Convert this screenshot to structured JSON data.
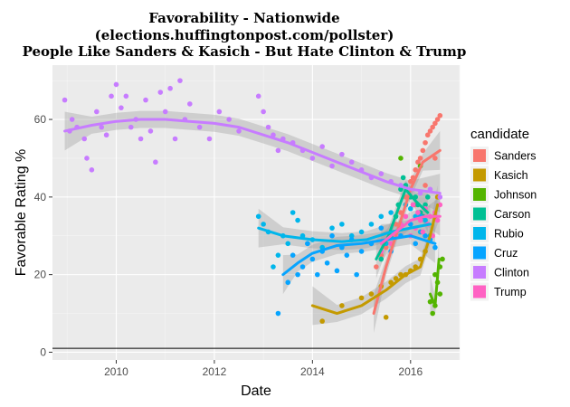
{
  "chart_data": {
    "type": "scatter",
    "title": [
      "Favorability - Nationwide",
      "(elections.huffingtonpost.com/pollster)",
      "People Like Sanders & Kasich - But Hate Clinton & Trump"
    ],
    "xlabel": "Date",
    "ylabel": "Favorable Rating %",
    "xlim": [
      2008.7,
      2017.0
    ],
    "ylim": [
      -2,
      74
    ],
    "x_ticks": [
      2010,
      2012,
      2014,
      2016
    ],
    "y_ticks": [
      0,
      20,
      40,
      60
    ],
    "reference_line_y": 1,
    "grid": true,
    "background": "#ebebeb",
    "smoothing": "loess with grey confidence band",
    "legend": {
      "title": "candidate",
      "placement": "right"
    },
    "series": [
      {
        "name": "Sanders",
        "color": "#f8766d",
        "points": [
          [
            2015.3,
            22
          ],
          [
            2015.4,
            25
          ],
          [
            2015.5,
            27
          ],
          [
            2015.6,
            30
          ],
          [
            2015.7,
            33
          ],
          [
            2015.8,
            36
          ],
          [
            2015.9,
            40
          ],
          [
            2016.0,
            44
          ],
          [
            2016.05,
            45
          ],
          [
            2016.1,
            47
          ],
          [
            2016.15,
            49
          ],
          [
            2016.2,
            50
          ],
          [
            2016.25,
            52
          ],
          [
            2016.3,
            54
          ],
          [
            2016.35,
            56
          ],
          [
            2016.4,
            57
          ],
          [
            2016.45,
            58
          ],
          [
            2016.5,
            59
          ],
          [
            2016.55,
            60
          ],
          [
            2016.6,
            61
          ],
          [
            2016.1,
            38
          ],
          [
            2016.3,
            43
          ],
          [
            2016.5,
            50
          ]
        ],
        "fit": [
          [
            2015.25,
            10
          ],
          [
            2015.5,
            22
          ],
          [
            2015.75,
            32
          ],
          [
            2016.0,
            42
          ],
          [
            2016.25,
            49
          ],
          [
            2016.6,
            52
          ]
        ]
      },
      {
        "name": "Kasich",
        "color": "#c49a00",
        "points": [
          [
            2014.2,
            8
          ],
          [
            2014.6,
            12
          ],
          [
            2015.0,
            14
          ],
          [
            2015.2,
            15
          ],
          [
            2015.4,
            17
          ],
          [
            2015.5,
            9
          ],
          [
            2015.6,
            18
          ],
          [
            2015.7,
            19
          ],
          [
            2015.8,
            20
          ],
          [
            2015.9,
            20
          ],
          [
            2016.0,
            21
          ],
          [
            2016.1,
            22
          ],
          [
            2016.2,
            24
          ],
          [
            2016.3,
            26
          ],
          [
            2016.4,
            30
          ],
          [
            2016.5,
            35
          ],
          [
            2016.55,
            40
          ]
        ],
        "fit": [
          [
            2014.0,
            12
          ],
          [
            2014.5,
            10
          ],
          [
            2015.0,
            12
          ],
          [
            2015.5,
            16
          ],
          [
            2015.9,
            20
          ],
          [
            2016.2,
            22
          ],
          [
            2016.4,
            30
          ],
          [
            2016.55,
            38
          ]
        ]
      },
      {
        "name": "Johnson",
        "color": "#53b400",
        "points": [
          [
            2015.8,
            50
          ],
          [
            2016.2,
            48
          ],
          [
            2016.4,
            13
          ],
          [
            2016.45,
            10
          ],
          [
            2016.5,
            12
          ],
          [
            2016.55,
            18
          ],
          [
            2016.6,
            22
          ],
          [
            2016.65,
            24
          ],
          [
            2016.5,
            20
          ],
          [
            2016.6,
            15
          ]
        ],
        "fit": [
          [
            2016.4,
            15
          ],
          [
            2016.5,
            12
          ],
          [
            2016.58,
            24
          ]
        ]
      },
      {
        "name": "Carson",
        "color": "#00c094",
        "points": [
          [
            2015.4,
            24
          ],
          [
            2015.6,
            30
          ],
          [
            2015.7,
            35
          ],
          [
            2015.75,
            38
          ],
          [
            2015.8,
            42
          ],
          [
            2015.85,
            45
          ],
          [
            2015.9,
            43
          ],
          [
            2016.0,
            40
          ],
          [
            2016.05,
            38
          ],
          [
            2016.1,
            40
          ],
          [
            2016.15,
            38
          ],
          [
            2016.2,
            36
          ],
          [
            2016.25,
            35
          ],
          [
            2016.3,
            38
          ],
          [
            2016.35,
            40
          ]
        ],
        "fit": [
          [
            2015.3,
            24
          ],
          [
            2015.55,
            30
          ],
          [
            2015.75,
            37
          ],
          [
            2015.9,
            42
          ],
          [
            2016.1,
            39
          ],
          [
            2016.35,
            36
          ]
        ]
      },
      {
        "name": "Rubio",
        "color": "#00b6eb",
        "points": [
          [
            2012.9,
            35
          ],
          [
            2013.0,
            33
          ],
          [
            2013.1,
            31
          ],
          [
            2013.2,
            22
          ],
          [
            2013.3,
            25
          ],
          [
            2013.4,
            30
          ],
          [
            2013.5,
            28
          ],
          [
            2013.6,
            36
          ],
          [
            2013.7,
            34
          ],
          [
            2013.8,
            30
          ],
          [
            2013.9,
            28
          ],
          [
            2014.0,
            29
          ],
          [
            2014.2,
            27
          ],
          [
            2014.4,
            32
          ],
          [
            2014.6,
            33
          ],
          [
            2014.8,
            30
          ],
          [
            2015.0,
            31
          ],
          [
            2015.2,
            33
          ],
          [
            2015.4,
            35
          ],
          [
            2015.5,
            28
          ],
          [
            2015.6,
            36
          ],
          [
            2015.7,
            30
          ],
          [
            2015.8,
            33
          ],
          [
            2015.9,
            38
          ],
          [
            2016.0,
            37
          ],
          [
            2016.1,
            35
          ],
          [
            2016.2,
            31
          ],
          [
            2016.3,
            34
          ],
          [
            2016.4,
            30
          ]
        ],
        "fit": [
          [
            2012.9,
            32
          ],
          [
            2013.4,
            30
          ],
          [
            2014.0,
            29
          ],
          [
            2014.6,
            28.5
          ],
          [
            2015.1,
            29
          ],
          [
            2015.6,
            31
          ],
          [
            2016.0,
            32
          ],
          [
            2016.4,
            33
          ]
        ]
      },
      {
        "name": "Cruz",
        "color": "#06a4ff",
        "points": [
          [
            2013.3,
            10
          ],
          [
            2013.5,
            18
          ],
          [
            2013.6,
            25
          ],
          [
            2013.7,
            20
          ],
          [
            2013.8,
            22
          ],
          [
            2013.9,
            28
          ],
          [
            2014.0,
            24
          ],
          [
            2014.1,
            20
          ],
          [
            2014.2,
            26
          ],
          [
            2014.3,
            23
          ],
          [
            2014.4,
            30
          ],
          [
            2014.5,
            21
          ],
          [
            2014.6,
            27
          ],
          [
            2014.7,
            25
          ],
          [
            2014.8,
            29
          ],
          [
            2014.9,
            20
          ],
          [
            2015.0,
            26
          ],
          [
            2015.2,
            28
          ],
          [
            2015.4,
            32
          ],
          [
            2015.6,
            26
          ],
          [
            2015.8,
            30
          ],
          [
            2016.0,
            33
          ],
          [
            2016.1,
            28
          ],
          [
            2016.2,
            35
          ],
          [
            2016.3,
            30
          ],
          [
            2016.4,
            29
          ],
          [
            2016.5,
            27
          ]
        ],
        "fit": [
          [
            2013.4,
            20
          ],
          [
            2013.7,
            23
          ],
          [
            2014.0,
            25.5
          ],
          [
            2014.5,
            27.5
          ],
          [
            2015.0,
            28
          ],
          [
            2015.5,
            29
          ],
          [
            2016.0,
            30
          ],
          [
            2016.5,
            28
          ]
        ]
      },
      {
        "name": "Clinton",
        "color": "#c77cff",
        "points": [
          [
            2008.95,
            65
          ],
          [
            2009.05,
            57
          ],
          [
            2009.1,
            60
          ],
          [
            2009.2,
            58
          ],
          [
            2009.35,
            55
          ],
          [
            2009.4,
            50
          ],
          [
            2009.5,
            47
          ],
          [
            2009.6,
            62
          ],
          [
            2009.7,
            58
          ],
          [
            2009.8,
            56
          ],
          [
            2009.9,
            66
          ],
          [
            2010.0,
            69
          ],
          [
            2010.1,
            63
          ],
          [
            2010.2,
            66
          ],
          [
            2010.3,
            58
          ],
          [
            2010.4,
            60
          ],
          [
            2010.5,
            55
          ],
          [
            2010.6,
            65
          ],
          [
            2010.7,
            57
          ],
          [
            2010.8,
            49
          ],
          [
            2010.9,
            67
          ],
          [
            2011.0,
            62
          ],
          [
            2011.1,
            68
          ],
          [
            2011.2,
            55
          ],
          [
            2011.3,
            70
          ],
          [
            2011.4,
            60
          ],
          [
            2011.5,
            64
          ],
          [
            2011.7,
            58
          ],
          [
            2011.9,
            55
          ],
          [
            2012.1,
            62
          ],
          [
            2012.3,
            60
          ],
          [
            2012.5,
            57
          ],
          [
            2012.9,
            66
          ],
          [
            2013.0,
            62
          ],
          [
            2013.1,
            58
          ],
          [
            2013.2,
            56
          ],
          [
            2013.3,
            52
          ],
          [
            2013.4,
            55
          ],
          [
            2013.6,
            54
          ],
          [
            2013.8,
            52
          ],
          [
            2014.0,
            50
          ],
          [
            2014.2,
            53
          ],
          [
            2014.4,
            48
          ],
          [
            2014.6,
            51
          ],
          [
            2014.8,
            49
          ],
          [
            2015.0,
            47
          ],
          [
            2015.2,
            45
          ],
          [
            2015.4,
            46
          ],
          [
            2015.6,
            44
          ],
          [
            2015.8,
            43
          ],
          [
            2016.0,
            42
          ],
          [
            2016.2,
            41
          ],
          [
            2016.4,
            42
          ],
          [
            2016.6,
            40
          ]
        ],
        "fit": [
          [
            2008.95,
            57
          ],
          [
            2009.5,
            58.5
          ],
          [
            2010.0,
            59.5
          ],
          [
            2010.5,
            60
          ],
          [
            2011.0,
            60
          ],
          [
            2011.5,
            59.5
          ],
          [
            2012.0,
            59
          ],
          [
            2012.5,
            58
          ],
          [
            2013.0,
            56
          ],
          [
            2013.5,
            54
          ],
          [
            2014.0,
            51.5
          ],
          [
            2014.5,
            49
          ],
          [
            2015.0,
            46.5
          ],
          [
            2015.5,
            44
          ],
          [
            2016.0,
            42
          ],
          [
            2016.6,
            41
          ]
        ]
      },
      {
        "name": "Trump",
        "color": "#ff61c3",
        "points": [
          [
            2015.4,
            26
          ],
          [
            2015.6,
            28
          ],
          [
            2015.7,
            30
          ],
          [
            2015.8,
            33
          ],
          [
            2015.9,
            35
          ],
          [
            2016.0,
            30
          ],
          [
            2016.05,
            38
          ],
          [
            2016.1,
            32
          ],
          [
            2016.15,
            36
          ],
          [
            2016.2,
            34
          ],
          [
            2016.25,
            31
          ],
          [
            2016.3,
            37
          ],
          [
            2016.35,
            33
          ],
          [
            2016.4,
            35
          ],
          [
            2016.45,
            30
          ],
          [
            2016.5,
            36
          ],
          [
            2016.55,
            34
          ],
          [
            2016.6,
            38
          ]
        ],
        "fit": [
          [
            2015.4,
            28
          ],
          [
            2015.7,
            31
          ],
          [
            2016.0,
            34
          ],
          [
            2016.3,
            35
          ],
          [
            2016.6,
            35
          ]
        ]
      }
    ]
  }
}
